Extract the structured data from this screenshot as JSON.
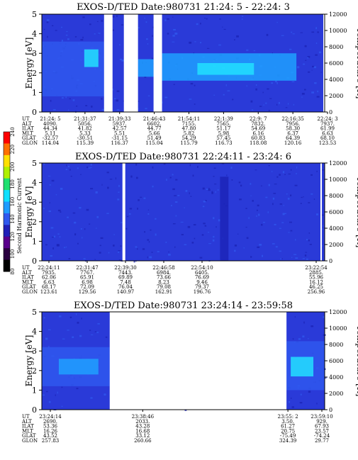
{
  "colors": {
    "background": "#2a3ad8",
    "dark": "#1c24b8",
    "mid": "#2f58ee",
    "bright": "#1fa0ff",
    "cyan": "#22e0ff",
    "gap": "#ffffff"
  },
  "colorbar": {
    "label": "Second Harmonic Current",
    "ticks": [
      "80",
      "100",
      "120",
      "140",
      "160",
      "180",
      "200",
      "220",
      "240"
    ],
    "colors": [
      "#000000",
      "#2a0040",
      "#5a008c",
      "#2020b8",
      "#2f58ee",
      "#1f9cff",
      "#10e0ff",
      "#20e070",
      "#b0f000",
      "#ffe000",
      "#ff7000",
      "#ff0000"
    ]
  },
  "axes": {
    "ylabel": "Energy [eV]",
    "y2label": "Temperature [K]",
    "yticks": [
      "0",
      "1",
      "2",
      "3",
      "4",
      "5"
    ],
    "y2ticks": [
      "0",
      "2000",
      "4000",
      "6000",
      "8000",
      "10000",
      "12000"
    ]
  },
  "row_labels": [
    "UT",
    "ALT",
    "ILAT",
    "MLT",
    "GLAT",
    "GLON"
  ],
  "chart_data": [
    {
      "type": "heatmap",
      "title": "EXOS-D/TED   Date:980731  21:24: 5 - 22:24: 3",
      "ylim": [
        0,
        5
      ],
      "y2lim": [
        0,
        12000
      ],
      "gaps": [
        [
          0.22,
          0.25
        ],
        [
          0.29,
          0.34
        ],
        [
          0.395,
          0.425
        ],
        [
          0.995,
          1.0
        ]
      ],
      "bands": [
        {
          "x0": 0.0,
          "x1": 0.22,
          "y0": 0.8,
          "y1": 3.6,
          "level": "mid"
        },
        {
          "x0": 0.15,
          "x1": 0.2,
          "y0": 2.3,
          "y1": 3.2,
          "level": "cyan"
        },
        {
          "x0": 0.34,
          "x1": 0.395,
          "y0": 1.8,
          "y1": 2.7,
          "level": "bright"
        },
        {
          "x0": 0.425,
          "x1": 0.9,
          "y0": 1.6,
          "y1": 3.0,
          "level": "bright"
        },
        {
          "x0": 0.55,
          "x1": 0.75,
          "y0": 1.9,
          "y1": 2.5,
          "level": "cyan"
        }
      ],
      "columns": [
        {
          "UT": "21:24: 5",
          "ALT": "4090.",
          "ILAT": "44.34",
          "MLT": "5.11",
          "GLAT": "-32.57",
          "GLON": "114.04"
        },
        {
          "UT": "21:31:37",
          "ALT": "5056.",
          "ILAT": "41.82",
          "MLT": "5.33",
          "GLAT": "-30.51",
          "GLON": "115.39"
        },
        {
          "UT": "21:39:33",
          "ALT": "5937.",
          "ILAT": "42.57",
          "MLT": "5.51",
          "GLAT": "-31.15",
          "GLON": "116.37"
        },
        {
          "UT": "21:46:43",
          "ALT": "6602.",
          "ILAT": "44.77",
          "MLT": "5.66",
          "GLAT": "51.49",
          "GLON": "115.04"
        },
        {
          "UT": "21:54:11",
          "ALT": "7155.",
          "ILAT": "47.80",
          "MLT": "5.82",
          "GLAT": "54.29",
          "GLON": "115.79"
        },
        {
          "UT": "22:1:39",
          "ALT": "7565.",
          "ILAT": "51.17",
          "MLT": "5.98",
          "GLAT": "57.45",
          "GLON": "116.73"
        },
        {
          "UT": "22:9: 7",
          "ALT": "7832.",
          "ILAT": "54.69",
          "MLT": "6.16",
          "GLAT": "60.83",
          "GLON": "118.08"
        },
        {
          "UT": "22:16:35",
          "ALT": "7956.",
          "ILAT": "58.30",
          "MLT": "6.37",
          "GLAT": "64.39",
          "GLON": "120.16"
        },
        {
          "UT": "22:24: 3",
          "ALT": "7937.",
          "ILAT": "61.99",
          "MLT": "6.63",
          "GLAT": "68.10",
          "GLON": "123.53"
        }
      ]
    },
    {
      "type": "heatmap",
      "title": "EXOS-D/TED   Date:980731  22:24:11 - 23:24: 6",
      "ylim": [
        0,
        5
      ],
      "y2lim": [
        0,
        12000
      ],
      "gaps": [
        [
          0.285,
          0.295
        ],
        [
          0.985,
          0.99
        ]
      ],
      "bands": [
        {
          "x0": 0.63,
          "x1": 0.66,
          "y0": 0.0,
          "y1": 4.3,
          "level": "dark"
        }
      ],
      "columns": [
        {
          "UT": "22:24:11",
          "ALT": "7935.",
          "ILAT": "62.06",
          "MLT": "6.63",
          "GLAT": "68.17",
          "GLON": "123.61"
        },
        {
          "UT": "22:31:47",
          "ALT": "7767.",
          "ILAT": "65.91",
          "MLT": "6.98",
          "GLAT": "72.09",
          "GLON": "129.56"
        },
        {
          "UT": "22:39:30",
          "ALT": "7443.",
          "ILAT": "69.89",
          "MLT": "7.48",
          "GLAT": "76.04",
          "GLON": "140.97"
        },
        {
          "UT": "22:46:58",
          "ALT": "6984.",
          "ILAT": "73.66",
          "MLT": "8.23",
          "GLAT": "79.08",
          "GLON": "162.91"
        },
        {
          "UT": "22:54:10",
          "ALT": "6405.",
          "ILAT": "76.69",
          "MLT": "9.46",
          "GLAT": "79.37",
          "GLON": "196.76"
        },
        {
          "UT": "23:22:54",
          "ALT": "2885.",
          "ILAT": "55.96",
          "MLT": "16.12",
          "GLAT": "46.25",
          "GLON": "256.96"
        }
      ]
    },
    {
      "type": "heatmap",
      "title": "EXOS-D/TED   Date:980731  23:24:14 - 23:59:58",
      "ylim": [
        0,
        5
      ],
      "y2lim": [
        0,
        12000
      ],
      "gaps": [
        [
          0.24,
          0.865
        ]
      ],
      "bands": [
        {
          "x0": 0.0,
          "x1": 0.24,
          "y0": 1.2,
          "y1": 3.2,
          "level": "mid"
        },
        {
          "x0": 0.06,
          "x1": 0.2,
          "y0": 1.8,
          "y1": 2.6,
          "level": "bright"
        },
        {
          "x0": 0.865,
          "x1": 1.0,
          "y0": 1.0,
          "y1": 3.5,
          "level": "mid"
        },
        {
          "x0": 0.88,
          "x1": 0.96,
          "y0": 1.7,
          "y1": 2.7,
          "level": "cyan"
        }
      ],
      "columns": [
        {
          "UT": "23:24:14",
          "ALT": "2690.",
          "ILAT": "53.36",
          "MLT": "16.26",
          "GLAT": "43.52",
          "GLON": "257.83"
        },
        {
          "UT": "23:38:46",
          "ALT": "2033.",
          "ILAT": "43.28",
          "MLT": "16.68",
          "GLAT": "33.12",
          "GLON": "260.66"
        },
        {
          "UT": "23:55: 2",
          "ALT": "3.50.",
          "ILAT": "61.27",
          "MLT": "20.75",
          "GLAT": "-75.49",
          "GLON": "324.39"
        },
        {
          "UT": "23:59:10",
          "ALT": "929.",
          "ILAT": "67.93",
          "MLT": "23.57",
          "GLAT": "-74.24",
          "GLON": "29.77"
        }
      ]
    }
  ]
}
